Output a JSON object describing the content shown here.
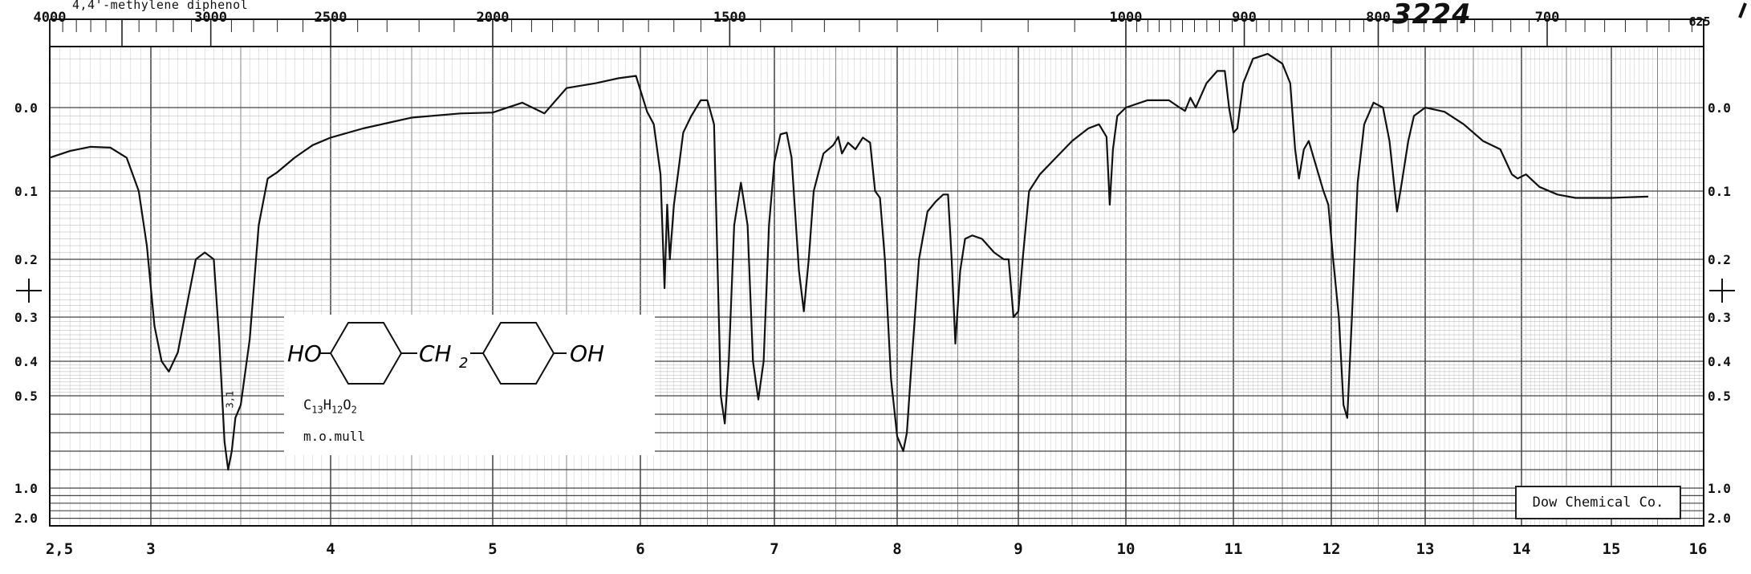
{
  "title": "4,4'-methylene diphenol",
  "serial_number": "3224",
  "formula": {
    "base": "C",
    "n1": "13",
    "h": "H",
    "n2": "12",
    "o": "O",
    "n3": "2"
  },
  "medium": "m.o.mull",
  "credit": "Dow Chemical Co.",
  "structure": {
    "left_group": "HO",
    "bridge": "CH",
    "bridge_sub": "2",
    "right_group": "OH"
  },
  "chart_data": {
    "type": "line",
    "title": "4,4'-methylene diphenol",
    "x_axis_bottom": {
      "unit": "wavelength",
      "ticks": [
        "2,5",
        "3",
        "4",
        "5",
        "6",
        "7",
        "8",
        "9",
        "10",
        "11",
        "12",
        "13",
        "14",
        "15",
        "16"
      ]
    },
    "x_axis_top": {
      "unit": "wavenumber",
      "ticks": [
        "4000",
        "3000",
        "2500",
        "2000",
        "1500",
        "1000",
        "900",
        "800",
        "700",
        "625"
      ]
    },
    "y_axis": {
      "unit": "absorbance",
      "ticks": [
        "0.0",
        "0.1",
        "0.2",
        "0.3",
        "0.4",
        "0.5",
        "1.0",
        "2.0"
      ]
    },
    "grid": true,
    "series": [
      {
        "points": [
          [
            2.5,
            0.06
          ],
          [
            2.6,
            0.052
          ],
          [
            2.7,
            0.047
          ],
          [
            2.8,
            0.048
          ],
          [
            2.88,
            0.06
          ],
          [
            2.94,
            0.1
          ],
          [
            2.98,
            0.18
          ],
          [
            3.02,
            0.32
          ],
          [
            3.06,
            0.4
          ],
          [
            3.1,
            0.43
          ],
          [
            3.15,
            0.38
          ],
          [
            3.2,
            0.28
          ],
          [
            3.25,
            0.2
          ],
          [
            3.3,
            0.19
          ],
          [
            3.35,
            0.2
          ],
          [
            3.38,
            0.35
          ],
          [
            3.41,
            0.75
          ],
          [
            3.43,
            0.9
          ],
          [
            3.45,
            0.8
          ],
          [
            3.47,
            0.62
          ],
          [
            3.5,
            0.55
          ],
          [
            3.55,
            0.35
          ],
          [
            3.6,
            0.15
          ],
          [
            3.65,
            0.085
          ],
          [
            3.7,
            0.078
          ],
          [
            3.8,
            0.06
          ],
          [
            3.9,
            0.045
          ],
          [
            4.0,
            0.036
          ],
          [
            4.2,
            0.025
          ],
          [
            4.5,
            0.012
          ],
          [
            4.8,
            0.007
          ],
          [
            5.0,
            0.006
          ],
          [
            5.2,
            -0.002
          ],
          [
            5.35,
            0.007
          ],
          [
            5.5,
            -0.008
          ],
          [
            5.7,
            -0.01
          ],
          [
            5.85,
            -0.012
          ],
          [
            5.97,
            -0.013
          ],
          [
            6.05,
            0.005
          ],
          [
            6.1,
            0.02
          ],
          [
            6.15,
            0.08
          ],
          [
            6.18,
            0.25
          ],
          [
            6.2,
            0.12
          ],
          [
            6.22,
            0.2
          ],
          [
            6.25,
            0.12
          ],
          [
            6.28,
            0.08
          ],
          [
            6.32,
            0.03
          ],
          [
            6.38,
            0.01
          ],
          [
            6.45,
            -0.003
          ],
          [
            6.5,
            -0.003
          ],
          [
            6.55,
            0.02
          ],
          [
            6.6,
            0.5
          ],
          [
            6.63,
            0.65
          ],
          [
            6.66,
            0.4
          ],
          [
            6.7,
            0.15
          ],
          [
            6.75,
            0.09
          ],
          [
            6.8,
            0.15
          ],
          [
            6.84,
            0.4
          ],
          [
            6.88,
            0.52
          ],
          [
            6.92,
            0.4
          ],
          [
            6.96,
            0.15
          ],
          [
            7.0,
            0.065
          ],
          [
            7.05,
            0.032
          ],
          [
            7.1,
            0.03
          ],
          [
            7.14,
            0.06
          ],
          [
            7.2,
            0.22
          ],
          [
            7.24,
            0.29
          ],
          [
            7.28,
            0.2
          ],
          [
            7.32,
            0.1
          ],
          [
            7.4,
            0.055
          ],
          [
            7.48,
            0.045
          ],
          [
            7.52,
            0.035
          ],
          [
            7.55,
            0.055
          ],
          [
            7.6,
            0.042
          ],
          [
            7.66,
            0.05
          ],
          [
            7.72,
            0.036
          ],
          [
            7.78,
            0.042
          ],
          [
            7.82,
            0.1
          ],
          [
            7.86,
            0.11
          ],
          [
            7.9,
            0.2
          ],
          [
            7.95,
            0.45
          ],
          [
            8.0,
            0.72
          ],
          [
            8.05,
            0.8
          ],
          [
            8.08,
            0.7
          ],
          [
            8.12,
            0.4
          ],
          [
            8.18,
            0.2
          ],
          [
            8.25,
            0.13
          ],
          [
            8.32,
            0.115
          ],
          [
            8.38,
            0.105
          ],
          [
            8.42,
            0.105
          ],
          [
            8.45,
            0.2
          ],
          [
            8.48,
            0.36
          ],
          [
            8.52,
            0.22
          ],
          [
            8.56,
            0.17
          ],
          [
            8.62,
            0.165
          ],
          [
            8.7,
            0.17
          ],
          [
            8.8,
            0.19
          ],
          [
            8.88,
            0.2
          ],
          [
            8.92,
            0.2
          ],
          [
            8.96,
            0.3
          ],
          [
            9.0,
            0.29
          ],
          [
            9.04,
            0.2
          ],
          [
            9.1,
            0.1
          ],
          [
            9.2,
            0.08
          ],
          [
            9.35,
            0.06
          ],
          [
            9.5,
            0.04
          ],
          [
            9.65,
            0.025
          ],
          [
            9.75,
            0.02
          ],
          [
            9.82,
            0.035
          ],
          [
            9.85,
            0.12
          ],
          [
            9.88,
            0.05
          ],
          [
            9.92,
            0.01
          ],
          [
            10.0,
            0.0
          ],
          [
            10.2,
            -0.003
          ],
          [
            10.4,
            -0.003
          ],
          [
            10.5,
            0.0
          ],
          [
            10.55,
            0.004
          ],
          [
            10.6,
            -0.004
          ],
          [
            10.65,
            0.0
          ],
          [
            10.75,
            -0.01
          ],
          [
            10.85,
            -0.015
          ],
          [
            10.92,
            -0.015
          ],
          [
            10.96,
            0.0
          ],
          [
            11.0,
            0.03
          ],
          [
            11.04,
            0.025
          ],
          [
            11.1,
            -0.01
          ],
          [
            11.2,
            -0.02
          ],
          [
            11.35,
            -0.022
          ],
          [
            11.5,
            -0.018
          ],
          [
            11.58,
            -0.01
          ],
          [
            11.63,
            0.05
          ],
          [
            11.67,
            0.085
          ],
          [
            11.72,
            0.05
          ],
          [
            11.77,
            0.04
          ],
          [
            11.82,
            0.06
          ],
          [
            11.87,
            0.08
          ],
          [
            11.92,
            0.1
          ],
          [
            11.97,
            0.12
          ],
          [
            12.02,
            0.2
          ],
          [
            12.08,
            0.3
          ],
          [
            12.13,
            0.55
          ],
          [
            12.17,
            0.62
          ],
          [
            12.22,
            0.3
          ],
          [
            12.28,
            0.09
          ],
          [
            12.35,
            0.02
          ],
          [
            12.45,
            -0.002
          ],
          [
            12.55,
            0.0
          ],
          [
            12.62,
            0.04
          ],
          [
            12.7,
            0.13
          ],
          [
            12.75,
            0.09
          ],
          [
            12.82,
            0.04
          ],
          [
            12.88,
            0.01
          ],
          [
            13.0,
            0.0
          ],
          [
            13.2,
            0.005
          ],
          [
            13.4,
            0.02
          ],
          [
            13.6,
            0.04
          ],
          [
            13.78,
            0.05
          ],
          [
            13.9,
            0.08
          ],
          [
            13.96,
            0.085
          ],
          [
            14.05,
            0.08
          ],
          [
            14.2,
            0.095
          ],
          [
            14.4,
            0.105
          ],
          [
            14.6,
            0.11
          ],
          [
            14.8,
            0.11
          ],
          [
            15.0,
            0.11
          ],
          [
            15.4,
            0.108
          ]
        ]
      }
    ],
    "peak_label": "3,1"
  }
}
